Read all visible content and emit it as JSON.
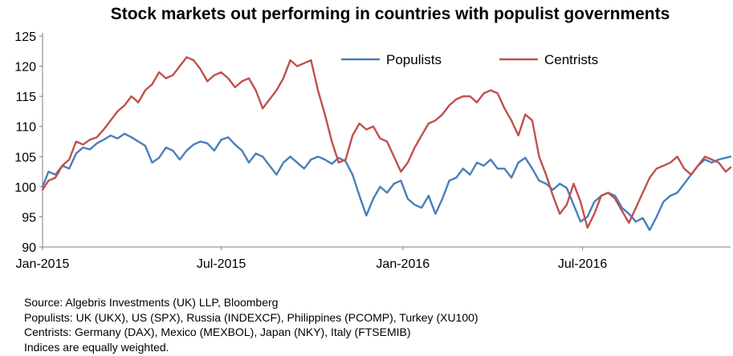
{
  "chart_data": {
    "type": "line",
    "title": "Stock markets out performing in countries with populist governments",
    "xlabel": "",
    "ylabel": "",
    "ylim": [
      90,
      125
    ],
    "yticks": [
      90,
      95,
      100,
      105,
      110,
      115,
      120,
      125
    ],
    "xticks": [
      {
        "label": "Jan-2015",
        "date": "2015-01-01"
      },
      {
        "label": "Jul-2015",
        "date": "2015-07-01"
      },
      {
        "label": "Jan-2016",
        "date": "2016-01-01"
      },
      {
        "label": "Jul-2016",
        "date": "2016-07-01"
      }
    ],
    "x_range": [
      "2015-01-01",
      "2016-11-28"
    ],
    "grid": false,
    "legend": "top-right",
    "series": [
      {
        "name": "Populists",
        "color": "#4a7ebb",
        "points": [
          [
            "2015-01-01",
            100.0
          ],
          [
            "2015-01-07",
            102.5
          ],
          [
            "2015-01-14",
            102.0
          ],
          [
            "2015-01-21",
            103.5
          ],
          [
            "2015-01-28",
            103.0
          ],
          [
            "2015-02-04",
            105.5
          ],
          [
            "2015-02-11",
            106.5
          ],
          [
            "2015-02-18",
            106.2
          ],
          [
            "2015-02-25",
            107.2
          ],
          [
            "2015-03-04",
            107.8
          ],
          [
            "2015-03-11",
            108.5
          ],
          [
            "2015-03-18",
            108.0
          ],
          [
            "2015-03-25",
            108.8
          ],
          [
            "2015-04-01",
            108.2
          ],
          [
            "2015-04-08",
            107.5
          ],
          [
            "2015-04-15",
            106.8
          ],
          [
            "2015-04-22",
            104.0
          ],
          [
            "2015-04-29",
            104.8
          ],
          [
            "2015-05-06",
            106.5
          ],
          [
            "2015-05-13",
            106.0
          ],
          [
            "2015-05-20",
            104.5
          ],
          [
            "2015-05-27",
            106.0
          ],
          [
            "2015-06-03",
            107.0
          ],
          [
            "2015-06-10",
            107.5
          ],
          [
            "2015-06-17",
            107.2
          ],
          [
            "2015-06-24",
            106.0
          ],
          [
            "2015-07-01",
            107.8
          ],
          [
            "2015-07-08",
            108.2
          ],
          [
            "2015-07-15",
            107.0
          ],
          [
            "2015-07-22",
            106.0
          ],
          [
            "2015-07-29",
            104.0
          ],
          [
            "2015-08-05",
            105.5
          ],
          [
            "2015-08-12",
            105.0
          ],
          [
            "2015-08-19",
            103.5
          ],
          [
            "2015-08-26",
            102.0
          ],
          [
            "2015-09-02",
            104.0
          ],
          [
            "2015-09-09",
            105.0
          ],
          [
            "2015-09-16",
            104.0
          ],
          [
            "2015-09-23",
            103.0
          ],
          [
            "2015-09-30",
            104.5
          ],
          [
            "2015-10-07",
            105.0
          ],
          [
            "2015-10-14",
            104.5
          ],
          [
            "2015-10-21",
            103.8
          ],
          [
            "2015-10-28",
            104.8
          ],
          [
            "2015-11-04",
            104.2
          ],
          [
            "2015-11-11",
            102.0
          ],
          [
            "2015-11-18",
            98.5
          ],
          [
            "2015-11-25",
            95.2
          ],
          [
            "2015-12-02",
            98.0
          ],
          [
            "2015-12-09",
            100.0
          ],
          [
            "2015-12-16",
            99.0
          ],
          [
            "2015-12-23",
            100.5
          ],
          [
            "2015-12-30",
            101.0
          ],
          [
            "2016-01-06",
            98.0
          ],
          [
            "2016-01-13",
            97.0
          ],
          [
            "2016-01-20",
            96.5
          ],
          [
            "2016-01-27",
            98.5
          ],
          [
            "2016-02-03",
            95.5
          ],
          [
            "2016-02-10",
            98.0
          ],
          [
            "2016-02-17",
            101.0
          ],
          [
            "2016-02-24",
            101.5
          ],
          [
            "2016-03-02",
            103.0
          ],
          [
            "2016-03-09",
            102.0
          ],
          [
            "2016-03-16",
            104.0
          ],
          [
            "2016-03-23",
            103.5
          ],
          [
            "2016-03-30",
            104.5
          ],
          [
            "2016-04-06",
            103.0
          ],
          [
            "2016-04-13",
            103.0
          ],
          [
            "2016-04-20",
            101.5
          ],
          [
            "2016-04-27",
            104.0
          ],
          [
            "2016-05-04",
            104.8
          ],
          [
            "2016-05-11",
            103.0
          ],
          [
            "2016-05-18",
            101.0
          ],
          [
            "2016-05-25",
            100.5
          ],
          [
            "2016-06-01",
            99.5
          ],
          [
            "2016-06-08",
            100.5
          ],
          [
            "2016-06-15",
            99.8
          ],
          [
            "2016-06-22",
            97.0
          ],
          [
            "2016-06-29",
            94.2
          ],
          [
            "2016-07-06",
            95.0
          ],
          [
            "2016-07-13",
            97.5
          ],
          [
            "2016-07-20",
            98.5
          ],
          [
            "2016-07-27",
            99.0
          ],
          [
            "2016-08-03",
            98.5
          ],
          [
            "2016-08-10",
            96.5
          ],
          [
            "2016-08-17",
            95.5
          ],
          [
            "2016-08-24",
            94.2
          ],
          [
            "2016-08-31",
            94.8
          ],
          [
            "2016-09-07",
            92.8
          ],
          [
            "2016-09-14",
            95.0
          ],
          [
            "2016-09-21",
            97.5
          ],
          [
            "2016-09-28",
            98.5
          ],
          [
            "2016-10-05",
            99.0
          ],
          [
            "2016-10-12",
            100.5
          ],
          [
            "2016-10-19",
            102.0
          ],
          [
            "2016-10-26",
            103.5
          ],
          [
            "2016-11-02",
            104.5
          ],
          [
            "2016-11-09",
            104.0
          ],
          [
            "2016-11-16",
            104.5
          ],
          [
            "2016-11-23",
            104.8
          ],
          [
            "2016-11-28",
            105.0
          ]
        ]
      },
      {
        "name": "Centrists",
        "color": "#c0504d",
        "points": [
          [
            "2015-01-01",
            99.5
          ],
          [
            "2015-01-07",
            101.0
          ],
          [
            "2015-01-14",
            101.5
          ],
          [
            "2015-01-21",
            103.5
          ],
          [
            "2015-01-28",
            104.5
          ],
          [
            "2015-02-04",
            107.5
          ],
          [
            "2015-02-11",
            107.0
          ],
          [
            "2015-02-18",
            107.8
          ],
          [
            "2015-02-25",
            108.2
          ],
          [
            "2015-03-04",
            109.5
          ],
          [
            "2015-03-11",
            111.0
          ],
          [
            "2015-03-18",
            112.5
          ],
          [
            "2015-03-25",
            113.5
          ],
          [
            "2015-04-01",
            115.0
          ],
          [
            "2015-04-08",
            114.0
          ],
          [
            "2015-04-15",
            116.0
          ],
          [
            "2015-04-22",
            117.0
          ],
          [
            "2015-04-29",
            119.0
          ],
          [
            "2015-05-06",
            118.0
          ],
          [
            "2015-05-13",
            118.5
          ],
          [
            "2015-05-20",
            120.0
          ],
          [
            "2015-05-27",
            121.5
          ],
          [
            "2015-06-03",
            121.0
          ],
          [
            "2015-06-10",
            119.5
          ],
          [
            "2015-06-17",
            117.5
          ],
          [
            "2015-06-24",
            118.5
          ],
          [
            "2015-07-01",
            119.0
          ],
          [
            "2015-07-08",
            118.0
          ],
          [
            "2015-07-15",
            116.5
          ],
          [
            "2015-07-22",
            117.5
          ],
          [
            "2015-07-29",
            118.0
          ],
          [
            "2015-08-05",
            116.0
          ],
          [
            "2015-08-12",
            113.0
          ],
          [
            "2015-08-19",
            114.5
          ],
          [
            "2015-08-26",
            116.0
          ],
          [
            "2015-09-02",
            118.0
          ],
          [
            "2015-09-09",
            121.0
          ],
          [
            "2015-09-16",
            120.0
          ],
          [
            "2015-09-23",
            120.5
          ],
          [
            "2015-09-30",
            121.0
          ],
          [
            "2015-10-07",
            116.0
          ],
          [
            "2015-10-14",
            112.0
          ],
          [
            "2015-10-21",
            107.5
          ],
          [
            "2015-10-28",
            104.0
          ],
          [
            "2015-11-04",
            104.5
          ],
          [
            "2015-11-11",
            108.5
          ],
          [
            "2015-11-18",
            110.5
          ],
          [
            "2015-11-25",
            109.5
          ],
          [
            "2015-12-02",
            110.0
          ],
          [
            "2015-12-09",
            108.0
          ],
          [
            "2015-12-16",
            107.5
          ],
          [
            "2015-12-23",
            105.0
          ],
          [
            "2015-12-30",
            102.5
          ],
          [
            "2016-01-06",
            104.0
          ],
          [
            "2016-01-13",
            106.5
          ],
          [
            "2016-01-20",
            108.5
          ],
          [
            "2016-01-27",
            110.5
          ],
          [
            "2016-02-03",
            111.0
          ],
          [
            "2016-02-10",
            112.0
          ],
          [
            "2016-02-17",
            113.5
          ],
          [
            "2016-02-24",
            114.5
          ],
          [
            "2016-03-02",
            115.0
          ],
          [
            "2016-03-09",
            115.0
          ],
          [
            "2016-03-16",
            114.0
          ],
          [
            "2016-03-23",
            115.5
          ],
          [
            "2016-03-30",
            116.0
          ],
          [
            "2016-04-06",
            115.5
          ],
          [
            "2016-04-13",
            113.0
          ],
          [
            "2016-04-20",
            111.0
          ],
          [
            "2016-04-27",
            108.5
          ],
          [
            "2016-05-04",
            112.0
          ],
          [
            "2016-05-11",
            111.0
          ],
          [
            "2016-05-18",
            105.0
          ],
          [
            "2016-05-25",
            102.0
          ],
          [
            "2016-06-01",
            98.5
          ],
          [
            "2016-06-08",
            95.5
          ],
          [
            "2016-06-15",
            97.0
          ],
          [
            "2016-06-22",
            100.5
          ],
          [
            "2016-06-29",
            97.5
          ],
          [
            "2016-07-06",
            93.2
          ],
          [
            "2016-07-13",
            95.5
          ],
          [
            "2016-07-20",
            98.5
          ],
          [
            "2016-07-27",
            99.0
          ],
          [
            "2016-08-03",
            98.0
          ],
          [
            "2016-08-10",
            96.0
          ],
          [
            "2016-08-17",
            94.0
          ],
          [
            "2016-08-24",
            96.5
          ],
          [
            "2016-08-31",
            99.0
          ],
          [
            "2016-09-07",
            101.5
          ],
          [
            "2016-09-14",
            103.0
          ],
          [
            "2016-09-21",
            103.5
          ],
          [
            "2016-09-28",
            104.0
          ],
          [
            "2016-10-05",
            105.0
          ],
          [
            "2016-10-12",
            103.0
          ],
          [
            "2016-10-19",
            102.0
          ],
          [
            "2016-10-26",
            103.5
          ],
          [
            "2016-11-02",
            105.0
          ],
          [
            "2016-11-09",
            104.5
          ],
          [
            "2016-11-16",
            104.0
          ],
          [
            "2016-11-23",
            102.5
          ],
          [
            "2016-11-28",
            103.2
          ]
        ]
      }
    ]
  },
  "notes": [
    "Source: Algebris Investments (UK) LLP, Bloomberg",
    "Populists: UK (UKX), US (SPX), Russia (INDEXCF), Philippines (PCOMP), Turkey (XU100)",
    "Centrists: Germany (DAX), Mexico (MEXBOL), Japan (NKY), Italy (FTSEMIB)",
    "Indices are equally weighted."
  ]
}
